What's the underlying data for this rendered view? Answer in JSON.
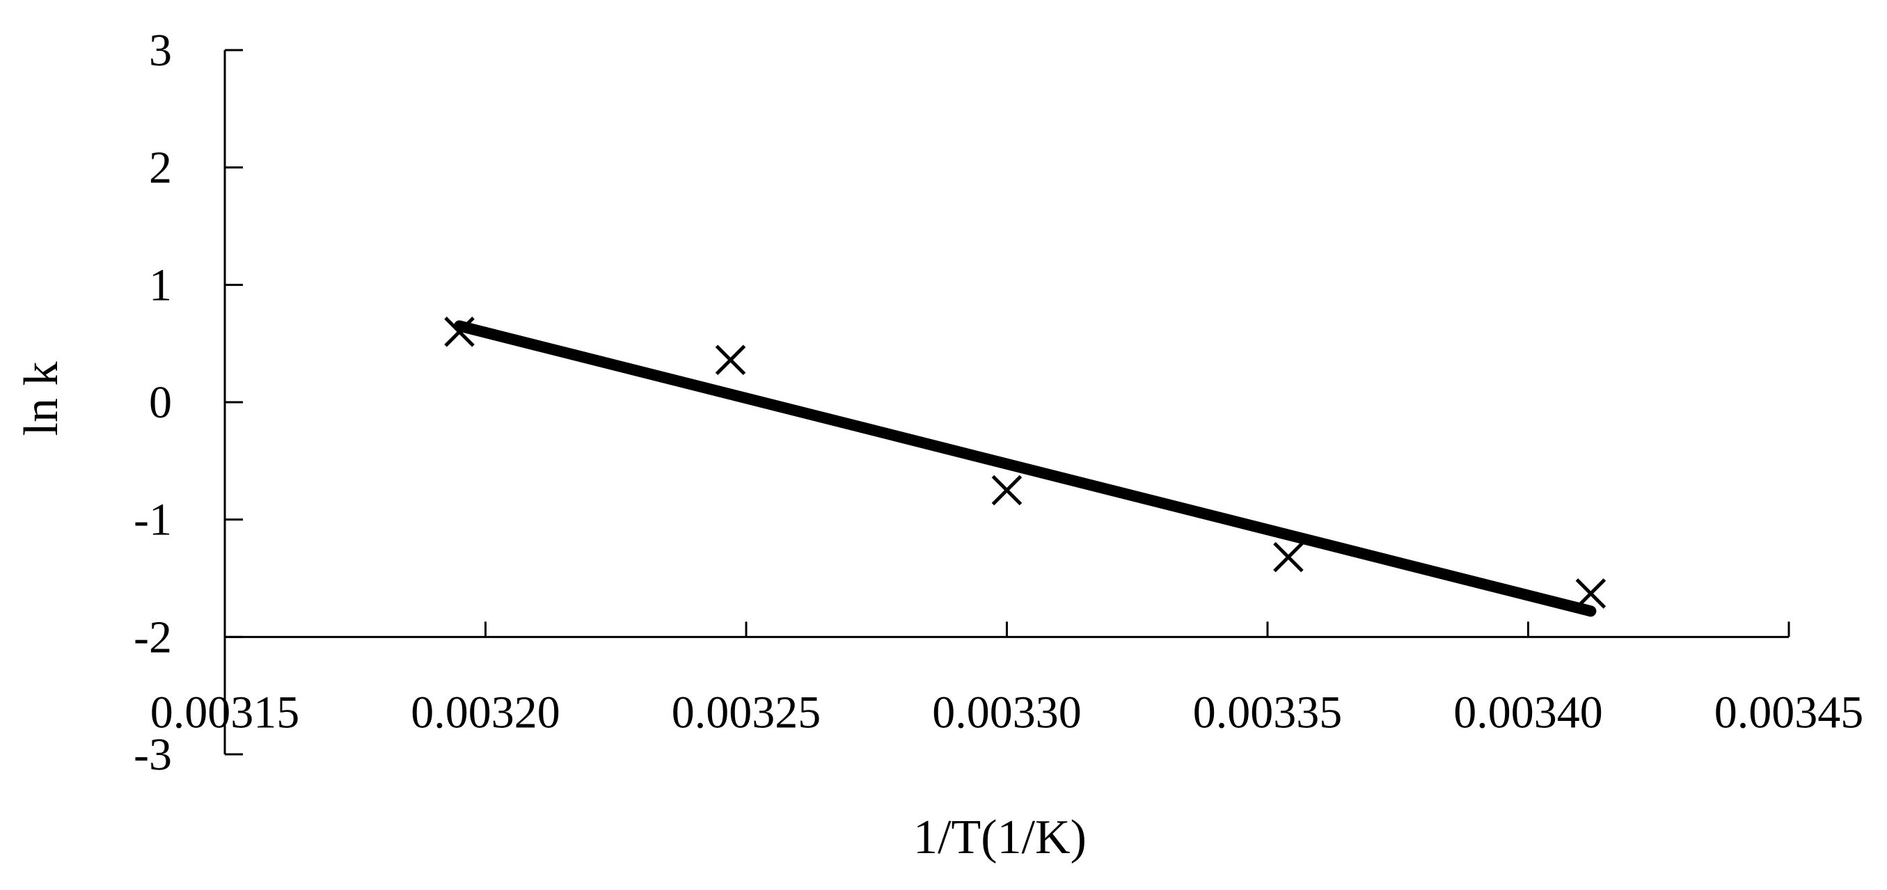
{
  "chart_data": {
    "type": "scatter",
    "title": "",
    "xlabel": "1/T(1/K)",
    "ylabel": "ln k",
    "xlim": [
      0.00315,
      0.00345
    ],
    "ylim": [
      -3,
      3
    ],
    "x_ticks": [
      0.00315,
      0.0032,
      0.00325,
      0.0033,
      0.00335,
      0.0034,
      0.00345
    ],
    "x_tick_labels": [
      "0.00315",
      "0.00320",
      "0.00325",
      "0.00330",
      "0.00335",
      "0.00340",
      "0.00345"
    ],
    "y_ticks": [
      3,
      2,
      1,
      0,
      -1,
      -2,
      -3
    ],
    "y_tick_labels": [
      "3",
      "2",
      "1",
      "0",
      "-1",
      "-2",
      "-3"
    ],
    "x_axis_crosses_y_at": -2,
    "grid": false,
    "series": [
      {
        "marker": "x",
        "x": [
          0.003195,
          0.003247,
          0.0033,
          0.003354,
          0.003412
        ],
        "y": [
          0.6,
          0.36,
          -0.75,
          -1.32,
          -1.63
        ]
      }
    ],
    "trendline": {
      "type": "linear",
      "x": [
        0.003195,
        0.003412
      ],
      "y": [
        0.65,
        -1.78
      ]
    }
  }
}
